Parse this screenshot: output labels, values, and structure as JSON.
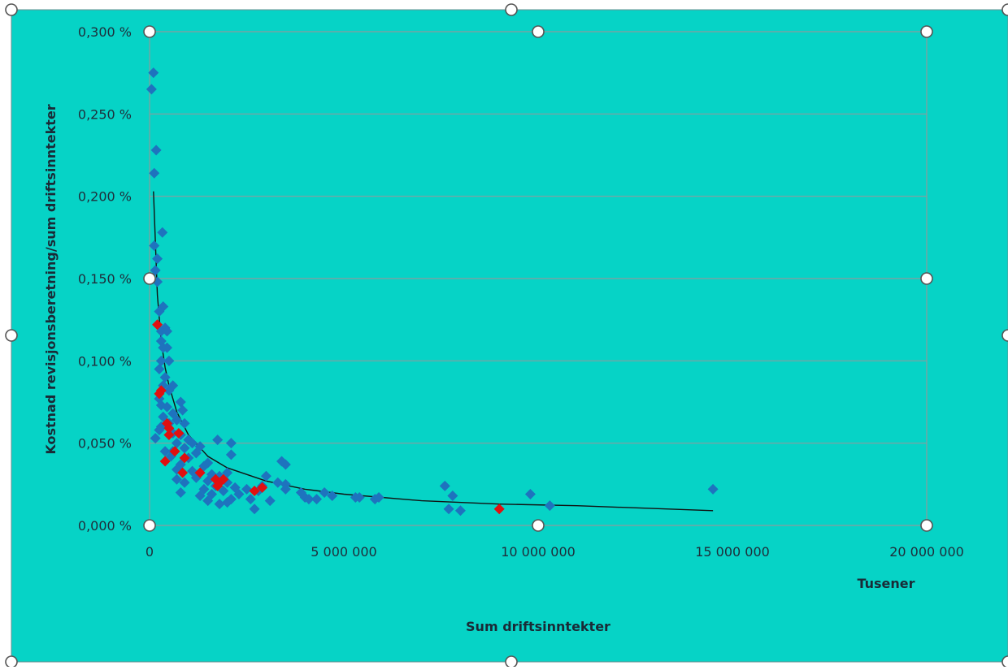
{
  "chart_data": {
    "type": "scatter",
    "x_unit_label": "Tusener",
    "xlabel": "Sum driftsinntekter",
    "ylabel": "Kostnad revisjonsberetning/sum driftsinntekter",
    "xlim": [
      0,
      20000000
    ],
    "ylim": [
      0,
      0.3
    ],
    "x_ticks": [
      0,
      5000000,
      10000000,
      15000000,
      20000000
    ],
    "x_tick_labels": [
      "0",
      "5 000 000",
      "10 000 000",
      "15 000 000",
      "20 000 000"
    ],
    "y_ticks": [
      0,
      0.05,
      0.1,
      0.15,
      0.2,
      0.25,
      0.3
    ],
    "y_tick_labels": [
      "0,000 %",
      "0,050 %",
      "0,100 %",
      "0,150 %",
      "0,200 %",
      "0,250 %",
      "0,300 %"
    ],
    "grid": "horizontal",
    "background_color": "#06d3c6",
    "series": [
      {
        "color": "#1e73be",
        "marker": "diamond",
        "points": [
          [
            100000,
            0.275
          ],
          [
            50000,
            0.265
          ],
          [
            170000,
            0.228
          ],
          [
            120000,
            0.214
          ],
          [
            330000,
            0.178
          ],
          [
            120000,
            0.17
          ],
          [
            200000,
            0.162
          ],
          [
            150000,
            0.155
          ],
          [
            200000,
            0.148
          ],
          [
            350000,
            0.133
          ],
          [
            250000,
            0.13
          ],
          [
            400000,
            0.12
          ],
          [
            300000,
            0.118
          ],
          [
            450000,
            0.118
          ],
          [
            300000,
            0.112
          ],
          [
            350000,
            0.108
          ],
          [
            450000,
            0.108
          ],
          [
            500000,
            0.1
          ],
          [
            300000,
            0.1
          ],
          [
            250000,
            0.095
          ],
          [
            400000,
            0.09
          ],
          [
            350000,
            0.085
          ],
          [
            600000,
            0.085
          ],
          [
            500000,
            0.082
          ],
          [
            250000,
            0.077
          ],
          [
            800000,
            0.075
          ],
          [
            300000,
            0.073
          ],
          [
            450000,
            0.072
          ],
          [
            850000,
            0.07
          ],
          [
            600000,
            0.068
          ],
          [
            350000,
            0.066
          ],
          [
            700000,
            0.064
          ],
          [
            500000,
            0.062
          ],
          [
            900000,
            0.062
          ],
          [
            300000,
            0.06
          ],
          [
            250000,
            0.058
          ],
          [
            600000,
            0.056
          ],
          [
            800000,
            0.055
          ],
          [
            150000,
            0.053
          ],
          [
            1000000,
            0.052
          ],
          [
            700000,
            0.05
          ],
          [
            1100000,
            0.05
          ],
          [
            1300000,
            0.048
          ],
          [
            900000,
            0.047
          ],
          [
            400000,
            0.045
          ],
          [
            600000,
            0.045
          ],
          [
            1200000,
            0.044
          ],
          [
            550000,
            0.042
          ],
          [
            1000000,
            0.041
          ],
          [
            1500000,
            0.038
          ],
          [
            800000,
            0.037
          ],
          [
            1400000,
            0.036
          ],
          [
            700000,
            0.034
          ],
          [
            1100000,
            0.033
          ],
          [
            1300000,
            0.032
          ],
          [
            1600000,
            0.031
          ],
          [
            1800000,
            0.03
          ],
          [
            1200000,
            0.029
          ],
          [
            700000,
            0.028
          ],
          [
            1500000,
            0.027
          ],
          [
            900000,
            0.026
          ],
          [
            2000000,
            0.026
          ],
          [
            1700000,
            0.024
          ],
          [
            2200000,
            0.023
          ],
          [
            1400000,
            0.022
          ],
          [
            2500000,
            0.022
          ],
          [
            1900000,
            0.021
          ],
          [
            800000,
            0.02
          ],
          [
            2800000,
            0.021
          ],
          [
            1600000,
            0.019
          ],
          [
            2300000,
            0.019
          ],
          [
            1300000,
            0.018
          ],
          [
            2100000,
            0.016
          ],
          [
            1500000,
            0.015
          ],
          [
            2600000,
            0.016
          ],
          [
            3100000,
            0.015
          ],
          [
            2000000,
            0.014
          ],
          [
            1800000,
            0.013
          ],
          [
            2700000,
            0.01
          ],
          [
            1750000,
            0.052
          ],
          [
            2100000,
            0.05
          ],
          [
            2100000,
            0.043
          ],
          [
            2000000,
            0.032
          ],
          [
            3000000,
            0.03
          ],
          [
            2900000,
            0.024
          ],
          [
            3300000,
            0.026
          ],
          [
            3500000,
            0.025
          ],
          [
            3400000,
            0.039
          ],
          [
            3500000,
            0.037
          ],
          [
            3500000,
            0.022
          ],
          [
            3900000,
            0.02
          ],
          [
            4000000,
            0.017
          ],
          [
            4100000,
            0.016
          ],
          [
            4300000,
            0.016
          ],
          [
            4500000,
            0.02
          ],
          [
            4700000,
            0.018
          ],
          [
            5300000,
            0.017
          ],
          [
            5400000,
            0.017
          ],
          [
            5800000,
            0.016
          ],
          [
            5900000,
            0.017
          ],
          [
            7600000,
            0.024
          ],
          [
            7800000,
            0.018
          ],
          [
            7700000,
            0.01
          ],
          [
            8000000,
            0.009
          ],
          [
            9800000,
            0.019
          ],
          [
            10300000,
            0.012
          ],
          [
            14500000,
            0.022
          ]
        ]
      },
      {
        "color": "#e01010",
        "marker": "diamond",
        "points": [
          [
            200000,
            0.122
          ],
          [
            300000,
            0.082
          ],
          [
            250000,
            0.08
          ],
          [
            450000,
            0.062
          ],
          [
            500000,
            0.059
          ],
          [
            500000,
            0.055
          ],
          [
            750000,
            0.056
          ],
          [
            650000,
            0.045
          ],
          [
            900000,
            0.041
          ],
          [
            400000,
            0.039
          ],
          [
            850000,
            0.032
          ],
          [
            1300000,
            0.032
          ],
          [
            1700000,
            0.028
          ],
          [
            1800000,
            0.026
          ],
          [
            1900000,
            0.028
          ],
          [
            1750000,
            0.024
          ],
          [
            2700000,
            0.021
          ],
          [
            2900000,
            0.023
          ],
          [
            9000000,
            0.01
          ]
        ]
      }
    ],
    "trendline": {
      "color": "#111111",
      "points": [
        [
          100000,
          0.203
        ],
        [
          200000,
          0.14
        ],
        [
          300000,
          0.112
        ],
        [
          400000,
          0.096
        ],
        [
          500000,
          0.085
        ],
        [
          700000,
          0.069
        ],
        [
          1000000,
          0.055
        ],
        [
          1500000,
          0.042
        ],
        [
          2000000,
          0.035
        ],
        [
          3000000,
          0.027
        ],
        [
          4000000,
          0.022
        ],
        [
          5000000,
          0.019
        ],
        [
          7000000,
          0.015
        ],
        [
          9000000,
          0.013
        ],
        [
          11000000,
          0.012
        ],
        [
          14500000,
          0.009
        ]
      ]
    }
  }
}
